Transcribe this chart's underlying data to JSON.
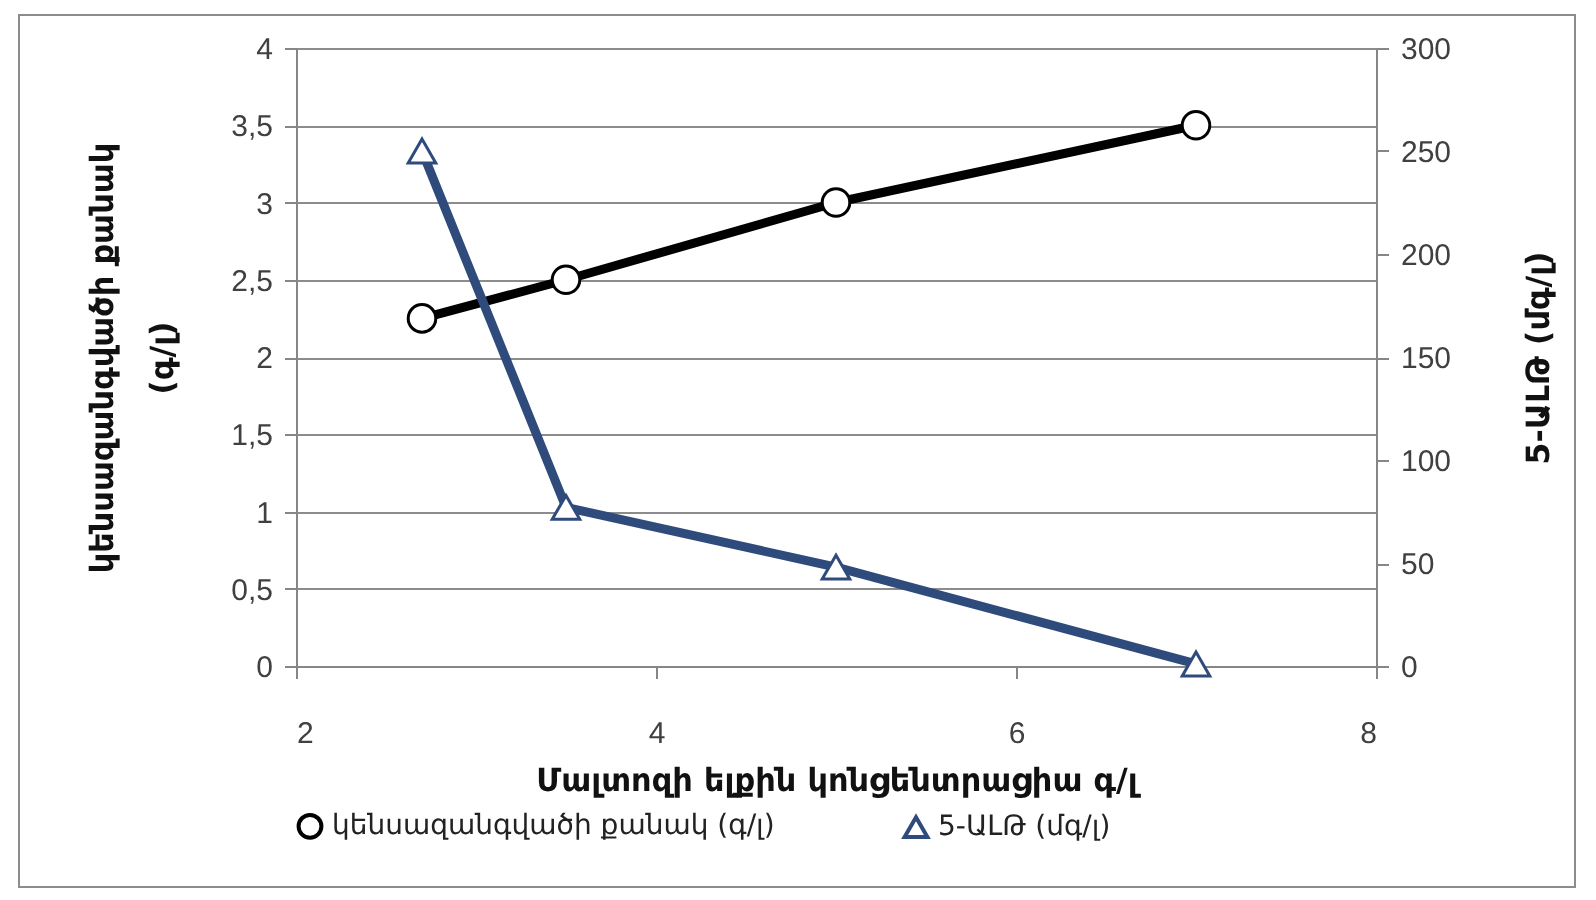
{
  "chart_data": {
    "type": "line",
    "xlabel": "Մալտոզի ելքին կոնցենտրացիա գ/լ",
    "ylabel": "կենսազանգվածի քանակ (գ/լ)",
    "y2label": "5-ԱԼԹ (մգ/լ)",
    "x": [
      2.7,
      3.5,
      5,
      7
    ],
    "series": [
      {
        "name": "կենսազանգվածի քանակ (գ/լ)",
        "color": "#000000",
        "marker": "circle",
        "values": [
          2.25,
          2.5,
          3,
          3.5
        ]
      },
      {
        "name": "5-ԱԼԹ (մգ/լ)",
        "color": "#2f4b7c",
        "marker": "triangle",
        "axis": "y2",
        "values": [
          250,
          77,
          48,
          1
        ]
      }
    ],
    "xlim": [
      2,
      8
    ],
    "xticks": [
      2,
      4,
      6,
      8
    ],
    "ylim": [
      0,
      4
    ],
    "yticks": [
      0,
      {
        "value": 0.5,
        "label": "0,5"
      },
      1,
      {
        "value": 1.5,
        "label": "1,5"
      },
      2,
      {
        "value": 2.5,
        "label": "2,5"
      },
      3,
      {
        "value": 3.5,
        "label": "3,5"
      },
      4
    ],
    "y2lim": [
      0,
      300
    ],
    "y2ticks": [
      0,
      50,
      100,
      150,
      200,
      250,
      300
    ],
    "grid": "y",
    "legend": "bottom"
  }
}
